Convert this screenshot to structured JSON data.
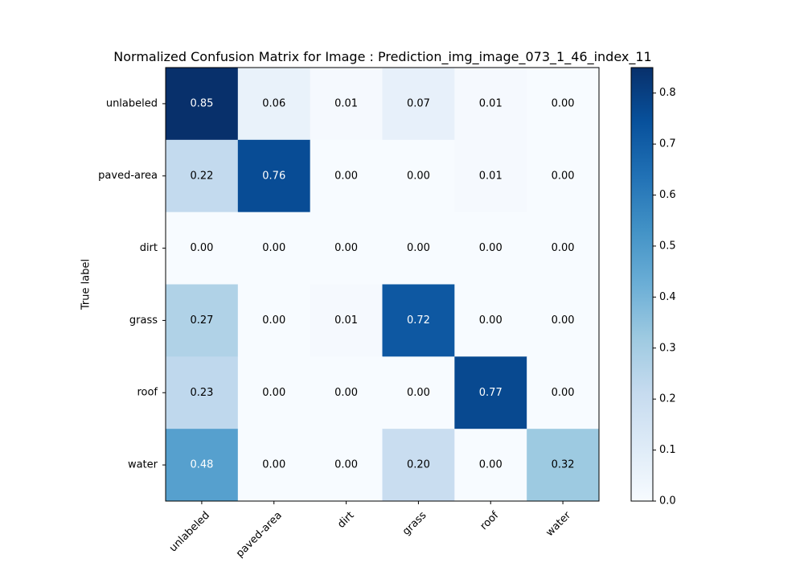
{
  "chart_data": {
    "type": "heatmap",
    "title": "Normalized Confusion Matrix for Image : Prediction_img_image_073_1_46_index_11",
    "ylabel": "True label",
    "xlabel": "",
    "row_labels": [
      "unlabeled",
      "paved-area",
      "dirt",
      "grass",
      "roof",
      "water"
    ],
    "col_labels": [
      "unlabeled",
      "paved-area",
      "dirt",
      "grass",
      "roof",
      "water"
    ],
    "values": [
      [
        0.85,
        0.06,
        0.01,
        0.07,
        0.01,
        0.0
      ],
      [
        0.22,
        0.76,
        0.0,
        0.0,
        0.01,
        0.0
      ],
      [
        0.0,
        0.0,
        0.0,
        0.0,
        0.0,
        0.0
      ],
      [
        0.27,
        0.0,
        0.01,
        0.72,
        0.0,
        0.0
      ],
      [
        0.23,
        0.0,
        0.0,
        0.0,
        0.77,
        0.0
      ],
      [
        0.48,
        0.0,
        0.0,
        0.2,
        0.0,
        0.32
      ]
    ],
    "value_labels": [
      [
        "0.85",
        "0.06",
        "0.01",
        "0.07",
        "0.01",
        "0.00"
      ],
      [
        "0.22",
        "0.76",
        "0.00",
        "0.00",
        "0.01",
        "0.00"
      ],
      [
        "0.00",
        "0.00",
        "0.00",
        "0.00",
        "0.00",
        "0.00"
      ],
      [
        "0.27",
        "0.00",
        "0.01",
        "0.72",
        "0.00",
        "0.00"
      ],
      [
        "0.23",
        "0.00",
        "0.00",
        "0.00",
        "0.77",
        "0.00"
      ],
      [
        "0.48",
        "0.00",
        "0.00",
        "0.20",
        "0.00",
        "0.32"
      ]
    ],
    "colormap": "Blues",
    "color_range": [
      0.0,
      0.85
    ],
    "colorbar": {
      "ticks": [
        0.0,
        0.1,
        0.2,
        0.3,
        0.4,
        0.5,
        0.6,
        0.7,
        0.8
      ],
      "tick_labels": [
        "0.0",
        "0.1",
        "0.2",
        "0.3",
        "0.4",
        "0.5",
        "0.6",
        "0.7",
        "0.8"
      ]
    },
    "grid": false,
    "xtick_rotation": 45
  }
}
